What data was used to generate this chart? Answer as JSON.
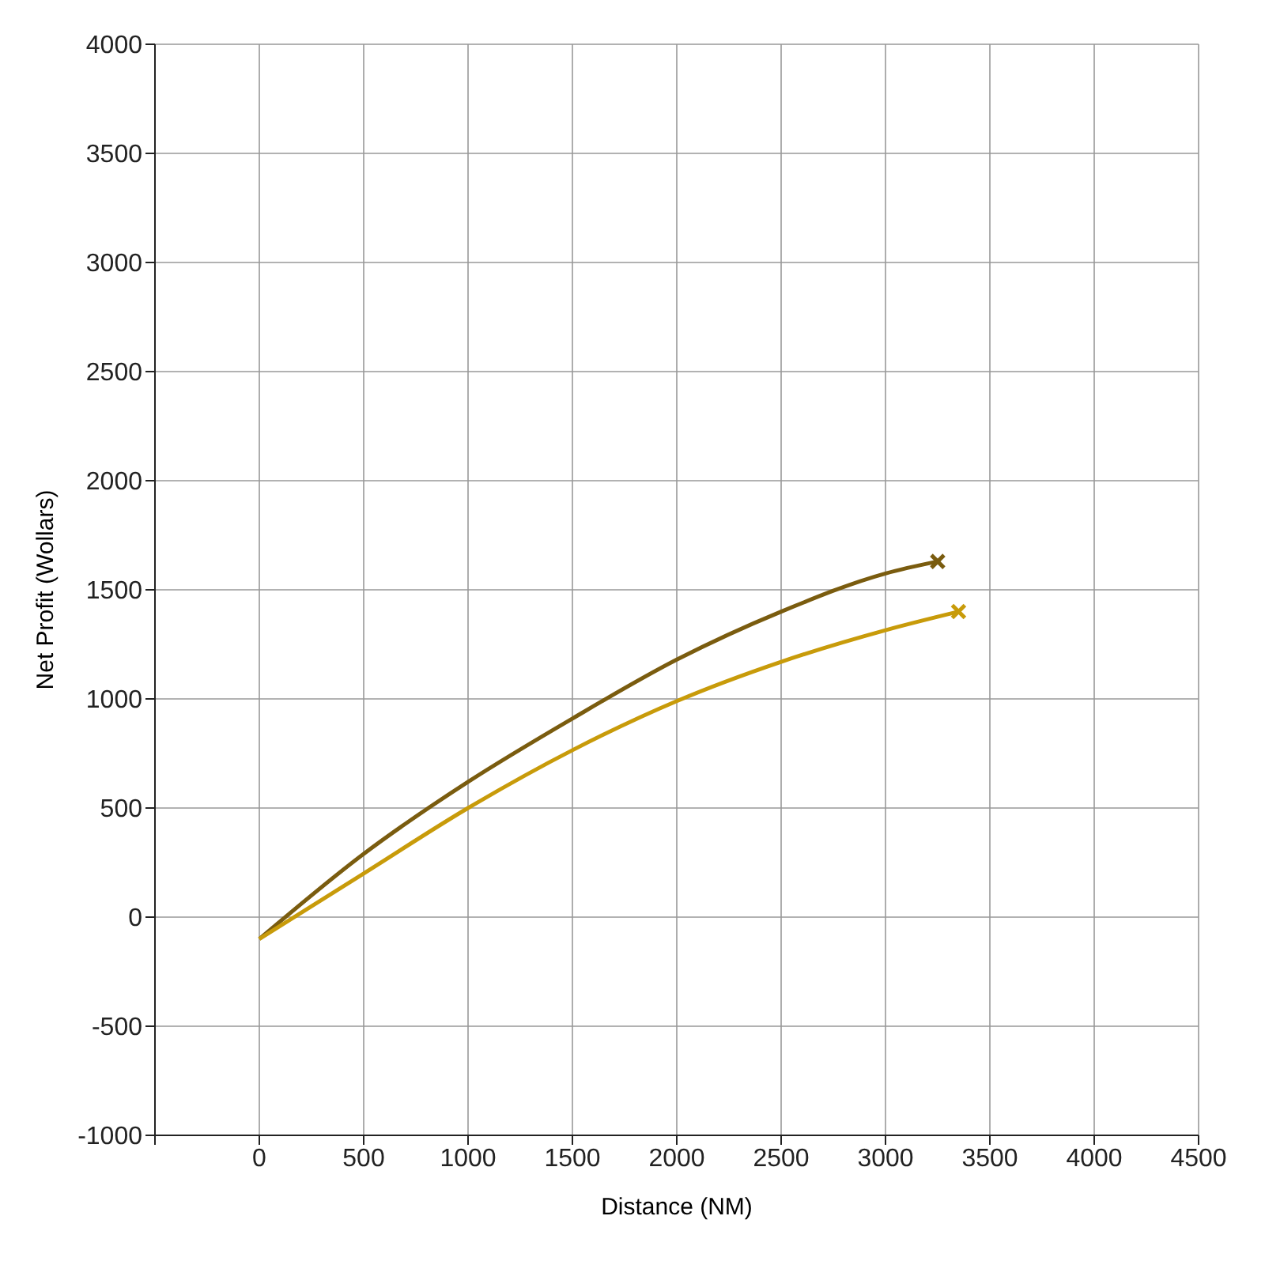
{
  "chart_data": {
    "type": "line",
    "xlabel": "Distance (NM)",
    "ylabel": "Net Profit (Wollars)",
    "xlim": [
      -500,
      4500
    ],
    "ylim": [
      -1000,
      4000
    ],
    "xticks": [
      {
        "value": -500,
        "label": null
      },
      0,
      500,
      1000,
      1500,
      2000,
      2500,
      3000,
      3500,
      4000,
      4500
    ],
    "yticks": [
      -1000,
      -500,
      0,
      500,
      1000,
      1500,
      2000,
      2500,
      3000,
      3500,
      4000
    ],
    "grid": true,
    "line_style": "solid",
    "series": [
      {
        "color": "#7a5c0f",
        "x": [
          0,
          500,
          1000,
          1500,
          2000,
          2500,
          3000,
          3250
        ],
        "values": [
          -100,
          290,
          620,
          910,
          1180,
          1400,
          1575,
          1630
        ]
      },
      {
        "color": "#c89b0a",
        "x": [
          0,
          500,
          1000,
          1500,
          2000,
          2500,
          3000,
          3350
        ],
        "values": [
          -100,
          200,
          500,
          765,
          990,
          1170,
          1315,
          1400
        ]
      },
      {
        "type": "scatter",
        "marker": "cross",
        "color": "#7a5c0f",
        "x": [
          3250
        ],
        "values": [
          1630
        ]
      },
      {
        "type": "scatter",
        "marker": "cross",
        "color": "#c89b0a",
        "x": [
          3350
        ],
        "values": [
          1400
        ]
      }
    ]
  }
}
